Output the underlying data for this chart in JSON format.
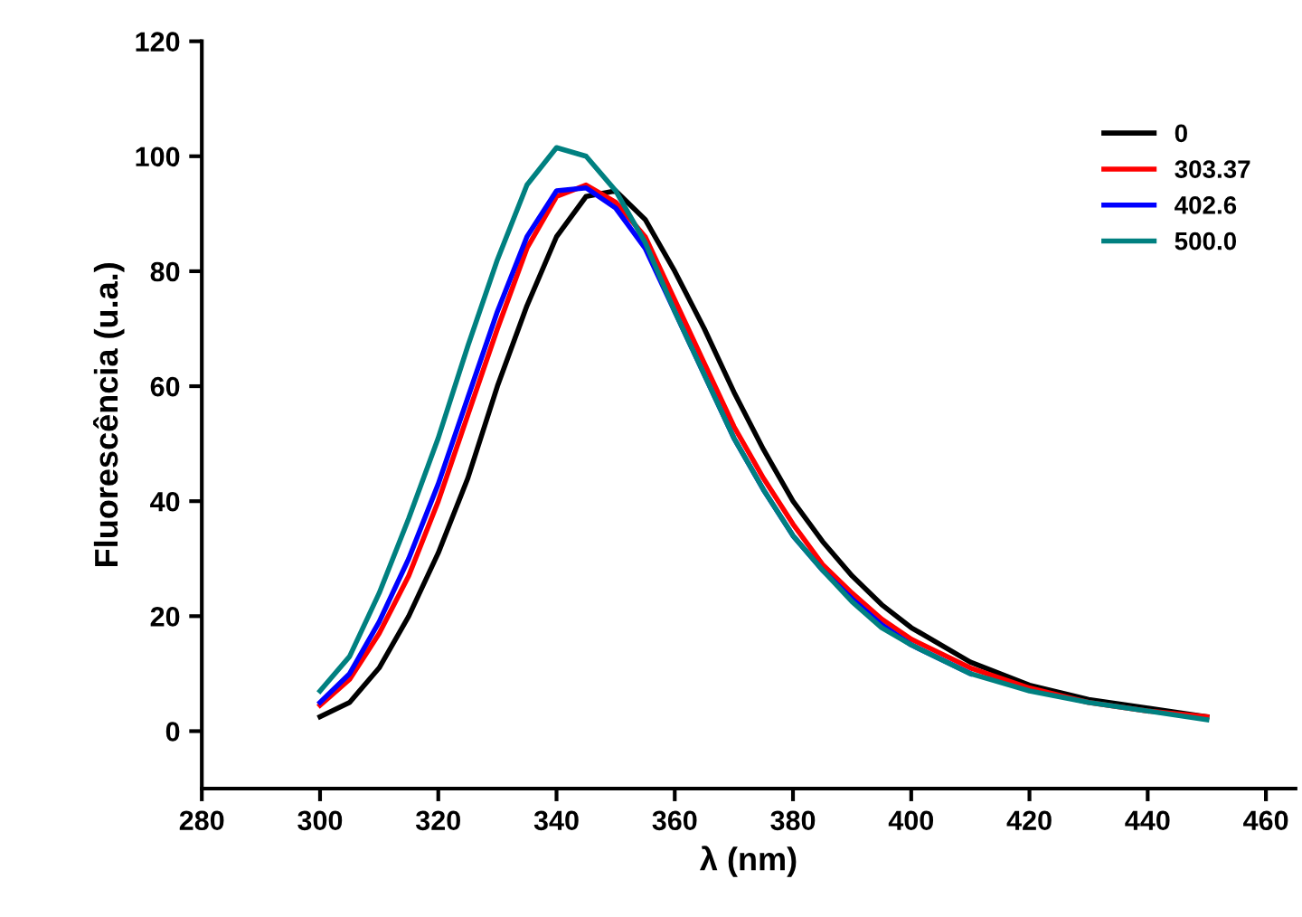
{
  "chart_data": {
    "type": "line",
    "xlabel": "λ (nm)",
    "ylabel": "Fluorescência (u.a.)",
    "xlim": [
      280,
      465
    ],
    "ylim": [
      -10,
      120
    ],
    "xticks": [
      280,
      300,
      320,
      340,
      360,
      380,
      400,
      420,
      440,
      460
    ],
    "yticks": [
      0,
      20,
      40,
      60,
      80,
      100,
      120
    ],
    "grid": false,
    "legend": "top right",
    "marker": "none",
    "line_style": "solid",
    "x": [
      300,
      305,
      310,
      315,
      320,
      325,
      330,
      335,
      340,
      345,
      350,
      355,
      360,
      365,
      370,
      375,
      380,
      385,
      390,
      395,
      400,
      410,
      420,
      430,
      440,
      450
    ],
    "series": [
      {
        "name": "0",
        "color": "#000000",
        "values": [
          2.5,
          5,
          11,
          20,
          31,
          44,
          60,
          74,
          86,
          93,
          94,
          89,
          80,
          70,
          59,
          49,
          40,
          33,
          27,
          22,
          18,
          12,
          8,
          5.5,
          4,
          2.5
        ]
      },
      {
        "name": "303.37",
        "color": "#ff0000",
        "values": [
          4.5,
          9,
          17,
          27,
          40,
          55,
          70,
          84,
          93,
          95,
          92,
          86,
          75,
          64,
          53,
          44,
          36,
          29,
          24,
          19.5,
          16,
          11,
          7.5,
          5,
          3.5,
          2.5
        ]
      },
      {
        "name": "402.6",
        "color": "#0000ff",
        "values": [
          5,
          10,
          19,
          30,
          43,
          58,
          73,
          86,
          94,
          94.5,
          91,
          84,
          73,
          62,
          51,
          42,
          34,
          28,
          23,
          18.5,
          15,
          10,
          null,
          null,
          null,
          null
        ]
      },
      {
        "name": "500.0",
        "color": "#008080",
        "values": [
          7,
          13,
          24,
          37,
          51,
          67,
          82,
          95,
          101.5,
          100,
          94,
          85,
          73,
          62,
          51,
          42,
          34,
          28,
          22.5,
          18,
          15,
          10,
          7,
          5,
          3.5,
          2
        ]
      }
    ]
  }
}
